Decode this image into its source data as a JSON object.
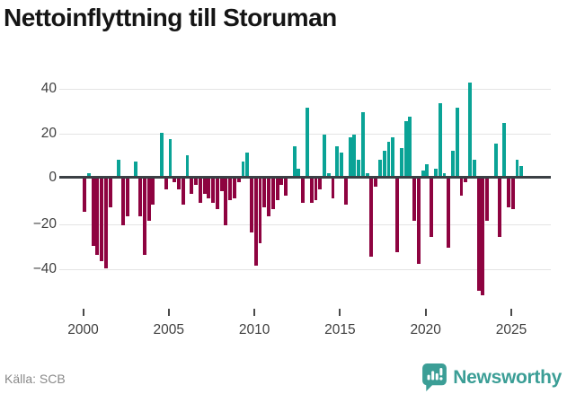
{
  "title": "Nettoinflyttning till Storuman",
  "footer": {
    "source": "Källa: SCB",
    "brand": "Newsworthy"
  },
  "colors": {
    "positive_bar": "#0aa396",
    "negative_bar": "#8e0340",
    "brand_teal": "#3b9e96",
    "zero_line": "#3b4045",
    "gridline": "#e4e4e4",
    "axis_text": "#3f3f3f",
    "title_text": "#151515",
    "source_text": "#8a8a8a"
  },
  "chart_data": {
    "type": "bar",
    "title": "Nettoinflyttning till Storuman",
    "x_tick_labels": [
      "2000",
      "2005",
      "2010",
      "2015",
      "2020",
      "2025"
    ],
    "y_tick_labels": [
      "40",
      "20",
      "0",
      "−20",
      "−40"
    ],
    "y_tick_values": [
      40,
      20,
      0,
      -20,
      -40
    ],
    "ylim": [
      -55,
      45
    ],
    "grid": "horizontal",
    "legend": "none",
    "frequency": "quarterly",
    "start": "2000-Q1",
    "end": "2025-Q3",
    "series": [
      {
        "year": 2000,
        "values": [
          -15,
          2,
          -30,
          -34
        ]
      },
      {
        "year": 2001,
        "values": [
          -37,
          -40,
          -13,
          0
        ]
      },
      {
        "year": 2002,
        "values": [
          8,
          -21,
          -17,
          0
        ]
      },
      {
        "year": 2003,
        "values": [
          7,
          -17,
          -34,
          -19
        ]
      },
      {
        "year": 2004,
        "values": [
          -12,
          0,
          20,
          -5
        ]
      },
      {
        "year": 2005,
        "values": [
          17,
          -2,
          -5,
          -12
        ]
      },
      {
        "year": 2006,
        "values": [
          10,
          -7,
          -3,
          -11
        ]
      },
      {
        "year": 2007,
        "values": [
          -7,
          -9,
          -11,
          -14
        ]
      },
      {
        "year": 2008,
        "values": [
          -6,
          -21,
          -10,
          -9
        ]
      },
      {
        "year": 2009,
        "values": [
          -2,
          7,
          11,
          -24
        ]
      },
      {
        "year": 2010,
        "values": [
          -39,
          -29,
          -13,
          -17
        ]
      },
      {
        "year": 2011,
        "values": [
          -14,
          -10,
          -3,
          -8
        ]
      },
      {
        "year": 2012,
        "values": [
          0,
          14,
          4,
          -11
        ]
      },
      {
        "year": 2013,
        "values": [
          31,
          -11,
          -10,
          -5
        ]
      },
      {
        "year": 2014,
        "values": [
          19,
          2,
          -9,
          14
        ]
      },
      {
        "year": 2015,
        "values": [
          11,
          -12,
          18,
          19
        ]
      },
      {
        "year": 2016,
        "values": [
          8,
          29,
          2,
          -35
        ]
      },
      {
        "year": 2017,
        "values": [
          -4,
          8,
          12,
          16
        ]
      },
      {
        "year": 2018,
        "values": [
          18,
          -33,
          13,
          25
        ]
      },
      {
        "year": 2019,
        "values": [
          27,
          -19,
          -38,
          3
        ]
      },
      {
        "year": 2020,
        "values": [
          6,
          -26,
          4,
          33
        ]
      },
      {
        "year": 2021,
        "values": [
          2,
          -31,
          12,
          31
        ]
      },
      {
        "year": 2022,
        "values": [
          -8,
          -2,
          42,
          8
        ]
      },
      {
        "year": 2023,
        "values": [
          -50,
          -52,
          -19,
          0
        ]
      },
      {
        "year": 2024,
        "values": [
          15,
          -26,
          24,
          -13
        ]
      },
      {
        "year": 2025,
        "values": [
          -14,
          8,
          5
        ]
      }
    ]
  }
}
